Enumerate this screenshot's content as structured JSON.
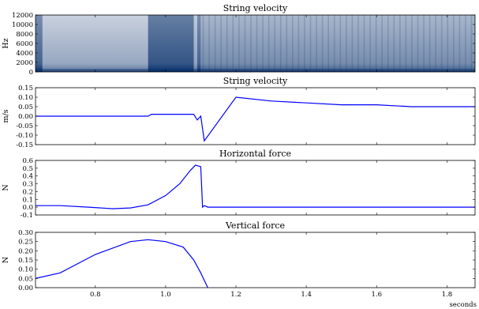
{
  "chart_data": [
    {
      "type": "heatmap",
      "title": "String velocity",
      "ylabel": "Hz",
      "xlim": [
        0.63,
        1.88
      ],
      "ylim": [
        0,
        12000
      ],
      "yticks": [
        0,
        2000,
        4000,
        6000,
        8000,
        10000,
        12000
      ],
      "segments": [
        {
          "x": [
            0.63,
            0.65
          ],
          "level": 0.55
        },
        {
          "x": [
            0.65,
            0.95
          ],
          "level": 0.22
        },
        {
          "x": [
            0.95,
            1.08
          ],
          "level": 0.62
        },
        {
          "x": [
            1.08,
            1.09
          ],
          "level": 0.25
        },
        {
          "x": [
            1.09,
            1.1
          ],
          "level": 0.55
        },
        {
          "x": [
            1.1,
            1.88
          ],
          "level": 0.35
        }
      ],
      "colors": {
        "low": "#ffffff",
        "high": "#08306b"
      }
    },
    {
      "type": "line",
      "title": "String velocity",
      "ylabel": "m/s",
      "xlim": [
        0.63,
        1.88
      ],
      "ylim": [
        -0.15,
        0.15
      ],
      "yticks": [
        -0.15,
        -0.1,
        -0.05,
        0.0,
        0.05,
        0.1,
        0.15
      ],
      "series": [
        {
          "color": "#0000ff",
          "x": [
            0.63,
            0.95,
            0.96,
            1.08,
            1.09,
            1.1,
            1.11,
            1.2,
            1.3,
            1.4,
            1.5,
            1.6,
            1.7,
            1.8,
            1.88
          ],
          "y": [
            0.0,
            0.0,
            0.01,
            0.01,
            -0.02,
            0.0,
            -0.13,
            0.1,
            0.08,
            0.07,
            0.06,
            0.06,
            0.05,
            0.05,
            0.05
          ]
        }
      ]
    },
    {
      "type": "line",
      "title": "Horizontal force",
      "ylabel": "N",
      "xlim": [
        0.63,
        1.88
      ],
      "ylim": [
        -0.1,
        0.6
      ],
      "yticks": [
        -0.1,
        0.0,
        0.1,
        0.2,
        0.3,
        0.4,
        0.5,
        0.6
      ],
      "series": [
        {
          "color": "#0000ff",
          "x": [
            0.63,
            0.7,
            0.78,
            0.85,
            0.9,
            0.95,
            1.0,
            1.04,
            1.07,
            1.085,
            1.1,
            1.105,
            1.11,
            1.12,
            1.88
          ],
          "y": [
            0.02,
            0.02,
            0.0,
            -0.02,
            -0.01,
            0.03,
            0.15,
            0.3,
            0.47,
            0.54,
            0.52,
            0.0,
            0.02,
            0.0,
            0.0
          ]
        }
      ]
    },
    {
      "type": "line",
      "title": "Vertical force",
      "ylabel": "N",
      "xlim": [
        0.63,
        1.88
      ],
      "ylim": [
        0.0,
        0.3
      ],
      "yticks": [
        0.0,
        0.05,
        0.1,
        0.15,
        0.2,
        0.25,
        0.3
      ],
      "xticks": [
        0.8,
        1.0,
        1.2,
        1.4,
        1.6,
        1.8
      ],
      "xlabel": "seconds",
      "series": [
        {
          "color": "#0000ff",
          "x": [
            0.63,
            0.7,
            0.8,
            0.9,
            0.95,
            1.0,
            1.05,
            1.08,
            1.1,
            1.12
          ],
          "y": [
            0.05,
            0.08,
            0.18,
            0.25,
            0.26,
            0.25,
            0.22,
            0.15,
            0.08,
            0.0
          ]
        }
      ]
    }
  ]
}
